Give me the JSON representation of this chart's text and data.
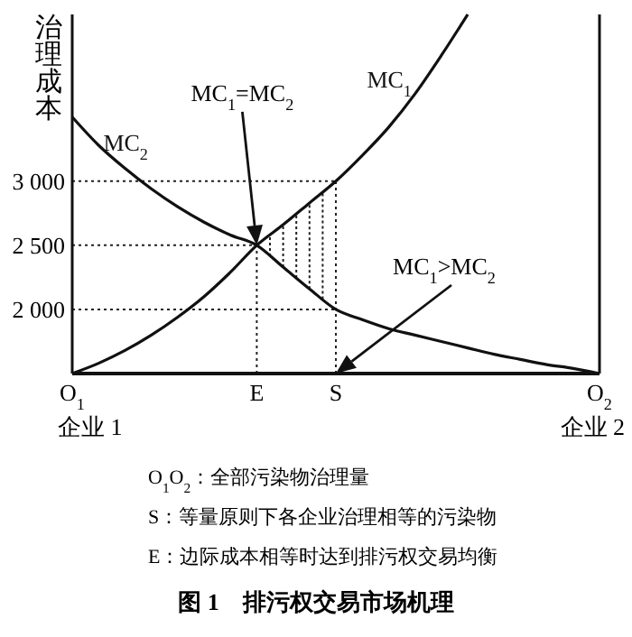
{
  "chart_data": {
    "type": "line",
    "title": "图 1　排污权交易市场机理",
    "ylabel": "治理成本",
    "categories": [
      "O$_{1}$",
      null,
      null,
      null,
      null,
      null,
      null,
      "E",
      null,
      null,
      "S",
      null,
      null,
      null,
      null,
      null,
      null,
      null,
      null,
      null,
      "O$_{2}$"
    ],
    "ylim": [
      1500,
      4300
    ],
    "yticks": [
      {
        "value": 2000,
        "label": "2 000"
      },
      {
        "value": 2500,
        "label": "2 500"
      },
      {
        "value": 3000,
        "label": "3 000"
      }
    ],
    "series": [
      {
        "name": "MC$_{1}$",
        "color": "#111111",
        "values": [
          1500,
          1580,
          1680,
          1800,
          1940,
          2100,
          2290,
          2500,
          2660,
          2830,
          3000,
          3200,
          3420,
          3680,
          3980,
          4300,
          null,
          null,
          null,
          null,
          null
        ]
      },
      {
        "name": "MC$_{2}$",
        "color": "#111111",
        "values": [
          3500,
          3280,
          3100,
          2940,
          2800,
          2680,
          2580,
          2500,
          2330,
          2160,
          2000,
          1920,
          1850,
          1800,
          1750,
          1700,
          1650,
          1610,
          1570,
          1540,
          1500
        ]
      }
    ],
    "ref_lines": [
      {
        "axis": "y",
        "value": 3000,
        "line_style": "dotted"
      },
      {
        "axis": "y",
        "value": 2500,
        "line_style": "dotted"
      },
      {
        "axis": "y",
        "value": 2000,
        "line_style": "dotted"
      },
      {
        "axis": "x",
        "value": "E",
        "line_style": "dotted"
      },
      {
        "axis": "x",
        "value": "S",
        "line_style": "dotted"
      }
    ],
    "annotations": [
      "MC$_{1}$=MC$_{2}$",
      "MC$_{1}$>MC$_{2}$",
      "企业 1",
      "企业 2",
      "O$_{1}$O$_{2}$：全部污染物治理量",
      "S：等量原则下各企业治理相等的污染物",
      "E：边际成本相等时达到排污权交易均衡"
    ],
    "grid": false,
    "line_style": "solid",
    "marker": "none"
  }
}
